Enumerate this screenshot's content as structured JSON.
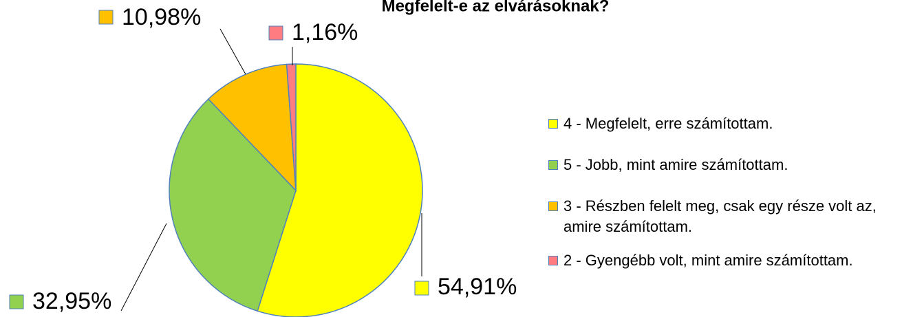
{
  "chart_data": {
    "type": "pie",
    "title": "Megfelelt-e az elvárásoknak?",
    "categories": [
      "4 - Megfelelt, erre számítottam.",
      "5 - Jobb, mint amire számítottam.",
      "3 - Részben felelt meg, csak egy része volt az, amire számítottam.",
      "2 - Gyengébb volt, mint amire számítottam."
    ],
    "values": [
      54.91,
      32.95,
      10.98,
      1.16
    ],
    "value_labels": [
      "54,91%",
      "32,95%",
      "10,98%",
      "1,16%"
    ],
    "colors": [
      "#ffff00",
      "#92d050",
      "#ffc000",
      "#ff7c80"
    ]
  }
}
